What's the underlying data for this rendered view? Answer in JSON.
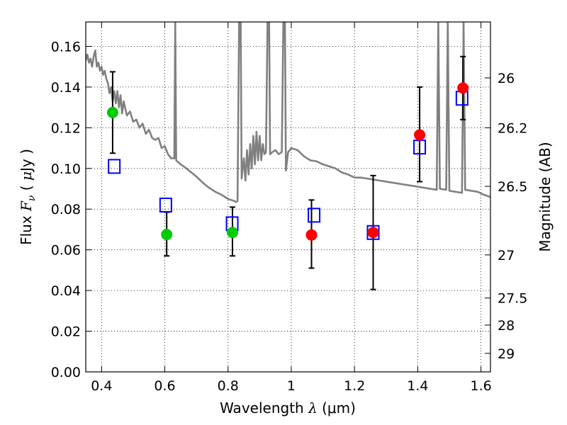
{
  "chart_data": {
    "type": "scatter",
    "title": "",
    "xlabel": "Wavelength  λ (μm)",
    "xlabel_parts": {
      "text": "Wavelength  ",
      "symbol": "λ",
      "unit": " (μm)"
    },
    "ylabel": "Flux  Fν  ( μJy )",
    "ylabel_parts": {
      "text": "Flux  ",
      "symbol": "F",
      "subscript": "ν",
      "unit_open": "  ( ",
      "unit_mu": "μ",
      "unit_rest": "Jy )"
    },
    "y2label": "Magnitude (AB)",
    "xlim": [
      0.35,
      1.63
    ],
    "ylim": [
      0.0,
      0.172
    ],
    "grid": true,
    "legend": "none",
    "x_ticks": [
      {
        "value": 0.4,
        "label": "0.4"
      },
      {
        "value": 0.6,
        "label": "0.6"
      },
      {
        "value": 0.8,
        "label": "0.8"
      },
      {
        "value": 1.0,
        "label": "1"
      },
      {
        "value": 1.2,
        "label": "1.2"
      },
      {
        "value": 1.4,
        "label": "1.4"
      },
      {
        "value": 1.6,
        "label": "1.6"
      }
    ],
    "y_ticks": [
      {
        "value": 0.0,
        "label": "0.00"
      },
      {
        "value": 0.02,
        "label": "0.02"
      },
      {
        "value": 0.04,
        "label": "0.04"
      },
      {
        "value": 0.06,
        "label": "0.06"
      },
      {
        "value": 0.08,
        "label": "0.08"
      },
      {
        "value": 0.1,
        "label": "0.10"
      },
      {
        "value": 0.12,
        "label": "0.12"
      },
      {
        "value": 0.14,
        "label": "0.14"
      },
      {
        "value": 0.16,
        "label": "0.16"
      }
    ],
    "y2_ticks": [
      {
        "flux": 0.1445,
        "label": "26"
      },
      {
        "flux": 0.12,
        "label": "26.2"
      },
      {
        "flux": 0.0912,
        "label": "26.5"
      },
      {
        "flux": 0.0575,
        "label": "27"
      },
      {
        "flux": 0.0363,
        "label": "27.5"
      },
      {
        "flux": 0.023,
        "label": "28"
      },
      {
        "flux": 0.0091,
        "label": "29"
      }
    ],
    "series": [
      {
        "marker": "circle",
        "color": "#00cc00",
        "points": [
          {
            "x": 0.435,
            "y": 0.1275,
            "ylo": 0.1075,
            "yhi": 0.1475
          },
          {
            "x": 0.606,
            "y": 0.0675,
            "ylo": 0.057,
            "yhi": 0.0785
          },
          {
            "x": 0.814,
            "y": 0.0685,
            "ylo": 0.057,
            "yhi": 0.081
          }
        ]
      },
      {
        "marker": "circle",
        "color": "#ff0000",
        "points": [
          {
            "x": 1.064,
            "y": 0.0673,
            "ylo": 0.051,
            "yhi": 0.0845
          },
          {
            "x": 1.259,
            "y": 0.0685,
            "ylo": 0.0405,
            "yhi": 0.0965
          },
          {
            "x": 1.406,
            "y": 0.1165,
            "ylo": 0.0935,
            "yhi": 0.14
          },
          {
            "x": 1.543,
            "y": 0.1395,
            "ylo": 0.124,
            "yhi": 0.155
          }
        ]
      },
      {
        "marker": "square-open",
        "color": "#0000ff",
        "points": [
          {
            "x": 0.44,
            "y": 0.101
          },
          {
            "x": 0.603,
            "y": 0.082
          },
          {
            "x": 0.813,
            "y": 0.0728
          },
          {
            "x": 1.072,
            "y": 0.077
          },
          {
            "x": 1.259,
            "y": 0.0685
          },
          {
            "x": 1.406,
            "y": 0.1105
          },
          {
            "x": 1.54,
            "y": 0.1345
          }
        ]
      },
      {
        "marker": "line",
        "color": "#808080",
        "points": [
          [
            0.35,
            0.153
          ],
          [
            0.355,
            0.156
          ],
          [
            0.36,
            0.152
          ],
          [
            0.365,
            0.154
          ],
          [
            0.37,
            0.15
          ],
          [
            0.375,
            0.155
          ],
          [
            0.38,
            0.158
          ],
          [
            0.385,
            0.15
          ],
          [
            0.39,
            0.152
          ],
          [
            0.395,
            0.148
          ],
          [
            0.4,
            0.15
          ],
          [
            0.405,
            0.146
          ],
          [
            0.41,
            0.148
          ],
          [
            0.415,
            0.144
          ],
          [
            0.42,
            0.142
          ],
          [
            0.425,
            0.137
          ],
          [
            0.43,
            0.14
          ],
          [
            0.435,
            0.133
          ],
          [
            0.44,
            0.138
          ],
          [
            0.445,
            0.132
          ],
          [
            0.45,
            0.138
          ],
          [
            0.455,
            0.13
          ],
          [
            0.46,
            0.136
          ],
          [
            0.465,
            0.127
          ],
          [
            0.47,
            0.133
          ],
          [
            0.48,
            0.126
          ],
          [
            0.49,
            0.128
          ],
          [
            0.5,
            0.123
          ],
          [
            0.51,
            0.124
          ],
          [
            0.52,
            0.12
          ],
          [
            0.53,
            0.122
          ],
          [
            0.54,
            0.117
          ],
          [
            0.55,
            0.119
          ],
          [
            0.56,
            0.115
          ],
          [
            0.57,
            0.114
          ],
          [
            0.58,
            0.115
          ],
          [
            0.59,
            0.11
          ],
          [
            0.6,
            0.111
          ],
          [
            0.61,
            0.107
          ],
          [
            0.62,
            0.105
          ],
          [
            0.63,
            0.105
          ],
          [
            0.633,
            0.172
          ],
          [
            0.636,
            0.104
          ],
          [
            0.65,
            0.102
          ],
          [
            0.66,
            0.101
          ],
          [
            0.68,
            0.0985
          ],
          [
            0.7,
            0.096
          ],
          [
            0.72,
            0.093
          ],
          [
            0.74,
            0.0905
          ],
          [
            0.76,
            0.0885
          ],
          [
            0.78,
            0.087
          ],
          [
            0.79,
            0.086
          ],
          [
            0.8,
            0.085
          ],
          [
            0.81,
            0.0845
          ],
          [
            0.82,
            0.084
          ],
          [
            0.825,
            0.0835
          ],
          [
            0.83,
            0.084
          ],
          [
            0.835,
            0.172
          ],
          [
            0.84,
            0.172
          ],
          [
            0.843,
            0.095
          ],
          [
            0.85,
            0.105
          ],
          [
            0.855,
            0.094
          ],
          [
            0.86,
            0.109
          ],
          [
            0.865,
            0.097
          ],
          [
            0.87,
            0.112
          ],
          [
            0.875,
            0.1
          ],
          [
            0.88,
            0.116
          ],
          [
            0.885,
            0.102
          ],
          [
            0.89,
            0.118
          ],
          [
            0.895,
            0.104
          ],
          [
            0.9,
            0.116
          ],
          [
            0.905,
            0.104
          ],
          [
            0.91,
            0.112
          ],
          [
            0.915,
            0.107
          ],
          [
            0.92,
            0.108
          ],
          [
            0.925,
            0.172
          ],
          [
            0.93,
            0.172
          ],
          [
            0.933,
            0.107
          ],
          [
            0.94,
            0.108
          ],
          [
            0.95,
            0.109
          ],
          [
            0.96,
            0.107
          ],
          [
            0.97,
            0.108
          ],
          [
            0.975,
            0.172
          ],
          [
            0.98,
            0.172
          ],
          [
            0.983,
            0.099
          ],
          [
            0.99,
            0.108
          ],
          [
            1.0,
            0.11
          ],
          [
            1.02,
            0.109
          ],
          [
            1.04,
            0.106
          ],
          [
            1.06,
            0.104
          ],
          [
            1.08,
            0.1035
          ],
          [
            1.1,
            0.102
          ],
          [
            1.12,
            0.101
          ],
          [
            1.14,
            0.1
          ],
          [
            1.16,
            0.098
          ],
          [
            1.18,
            0.097
          ],
          [
            1.2,
            0.0955
          ],
          [
            1.22,
            0.0955
          ],
          [
            1.24,
            0.095
          ],
          [
            1.26,
            0.0945
          ],
          [
            1.28,
            0.094
          ],
          [
            1.3,
            0.0935
          ],
          [
            1.32,
            0.093
          ],
          [
            1.34,
            0.0925
          ],
          [
            1.36,
            0.092
          ],
          [
            1.38,
            0.0915
          ],
          [
            1.4,
            0.091
          ],
          [
            1.42,
            0.0905
          ],
          [
            1.44,
            0.09
          ],
          [
            1.46,
            0.0895
          ],
          [
            1.465,
            0.172
          ],
          [
            1.47,
            0.09
          ],
          [
            1.49,
            0.0895
          ],
          [
            1.495,
            0.172
          ],
          [
            1.5,
            0.089
          ],
          [
            1.52,
            0.0885
          ],
          [
            1.54,
            0.088
          ],
          [
            1.545,
            0.172
          ],
          [
            1.55,
            0.0895
          ],
          [
            1.57,
            0.089
          ],
          [
            1.59,
            0.0885
          ],
          [
            1.61,
            0.087
          ],
          [
            1.63,
            0.086
          ]
        ]
      }
    ]
  }
}
